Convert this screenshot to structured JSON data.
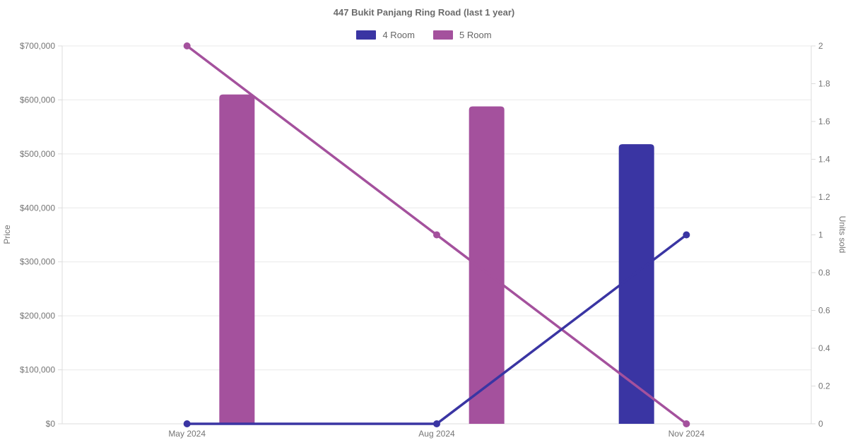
{
  "title": "447 Bukit Panjang Ring Road (last 1 year)",
  "legend": [
    {
      "label": "4 Room",
      "color": "#3a35a3"
    },
    {
      "label": "5 Room",
      "color": "#a4519d"
    }
  ],
  "axes": {
    "left_title": "Price",
    "right_title": "Units sold"
  },
  "colors": {
    "four_room": "#3a35a3",
    "five_room": "#a4519d",
    "grid": "#e9e9e9",
    "axis_line": "#dcdcdc",
    "tick_text": "#757575",
    "title_text": "#6b6b6b"
  },
  "chart_data": {
    "type": "bar",
    "subtype": "combo-bar-line-dual-axis",
    "title": "447 Bukit Panjang Ring Road (last 1 year)",
    "categories": [
      "May 2024",
      "Aug 2024",
      "Nov 2024"
    ],
    "left_axis": {
      "label": "Price",
      "min": 0,
      "max": 700000,
      "tick_step": 100000,
      "tick_format": "$#,##0"
    },
    "right_axis": {
      "label": "Units sold",
      "min": 0,
      "max": 2,
      "tick_step": 0.2
    },
    "bar_series": [
      {
        "name": "4 Room",
        "axis": "left",
        "color": "#3a35a3",
        "values": [
          null,
          null,
          518000
        ]
      },
      {
        "name": "5 Room",
        "axis": "left",
        "color": "#a4519d",
        "values": [
          610000,
          588000,
          null
        ]
      }
    ],
    "line_series": [
      {
        "name": "4 Room",
        "axis": "right",
        "color": "#3a35a3",
        "values": [
          0,
          0,
          1
        ]
      },
      {
        "name": "5 Room",
        "axis": "right",
        "color": "#a4519d",
        "values": [
          2,
          1,
          0
        ]
      }
    ],
    "grid": "horizontal",
    "legend_position": "top"
  }
}
